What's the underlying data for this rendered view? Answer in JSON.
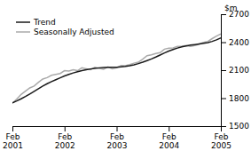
{
  "chart_data": {
    "type": "line",
    "ylabel": "$m",
    "categories": [
      "Feb\n2001",
      null,
      null,
      null,
      null,
      null,
      null,
      null,
      null,
      null,
      null,
      null,
      "Feb\n2002",
      null,
      null,
      null,
      null,
      null,
      null,
      null,
      null,
      null,
      null,
      null,
      "Feb\n2003",
      null,
      null,
      null,
      null,
      null,
      null,
      null,
      null,
      null,
      null,
      null,
      "Feb\n2004",
      null,
      null,
      null,
      null,
      null,
      null,
      null,
      null,
      null,
      null,
      null,
      "Feb\n2005"
    ],
    "series": [
      {
        "name": "Trend",
        "color": "#1a1a1a",
        "values": [
          1750,
          1770,
          1793,
          1818,
          1845,
          1873,
          1902,
          1930,
          1955,
          1978,
          1998,
          2018,
          2038,
          2055,
          2070,
          2083,
          2095,
          2105,
          2113,
          2120,
          2125,
          2128,
          2130,
          2130,
          2132,
          2135,
          2140,
          2148,
          2158,
          2170,
          2185,
          2202,
          2220,
          2240,
          2262,
          2285,
          2305,
          2322,
          2337,
          2350,
          2360,
          2368,
          2374,
          2380,
          2387,
          2395,
          2408,
          2425,
          2445
        ]
      },
      {
        "name": "Seasonally Adjusted",
        "color": "#aaaaaa",
        "values": [
          1745,
          1790,
          1840,
          1875,
          1910,
          1930,
          1970,
          2005,
          2020,
          2045,
          2055,
          2065,
          2095,
          2090,
          2105,
          2095,
          2125,
          2115,
          2105,
          2130,
          2120,
          2110,
          2135,
          2115,
          2125,
          2150,
          2148,
          2160,
          2175,
          2185,
          2218,
          2255,
          2265,
          2278,
          2288,
          2325,
          2335,
          2338,
          2355,
          2358,
          2365,
          2355,
          2365,
          2378,
          2398,
          2408,
          2438,
          2465,
          2488
        ]
      }
    ],
    "ylim": [
      1500,
      2700
    ],
    "yticks": [
      1500,
      1800,
      2100,
      2400,
      2700
    ],
    "legend": "upper left",
    "grid": false
  }
}
